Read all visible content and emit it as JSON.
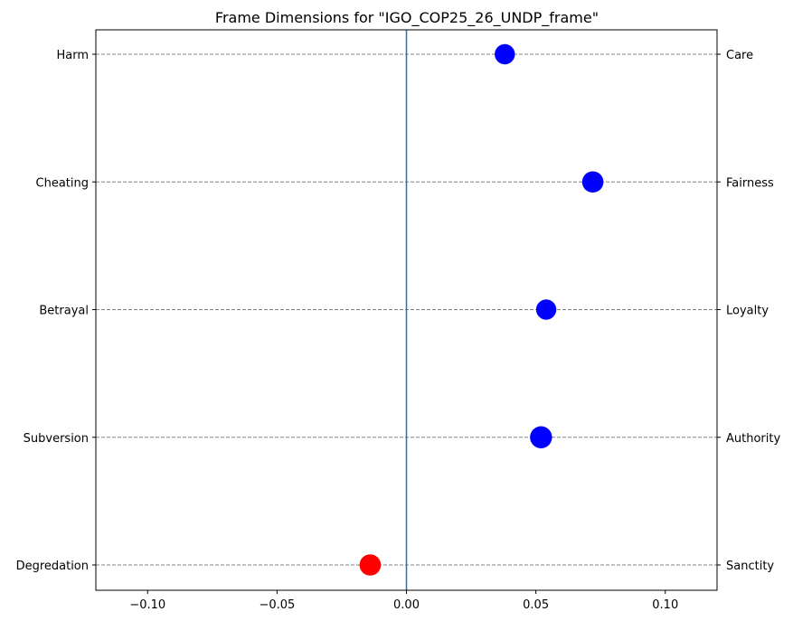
{
  "chart_data": {
    "type": "scatter",
    "title": "Frame Dimensions for \"IGO_COP25_26_UNDP_frame\"",
    "xlabel": "",
    "ylabel": "",
    "xlim": [
      -0.12,
      0.12
    ],
    "x_ticks": [
      -0.1,
      -0.05,
      0.0,
      0.05,
      0.1
    ],
    "x_tick_labels": [
      "−0.10",
      "−0.05",
      "0.00",
      "0.05",
      "0.10"
    ],
    "left_labels": [
      "Harm",
      "Cheating",
      "Betrayal",
      "Subversion",
      "Degredation"
    ],
    "right_labels": [
      "Care",
      "Fairness",
      "Loyalty",
      "Authority",
      "Sanctity"
    ],
    "values": [
      0.038,
      0.072,
      0.054,
      0.052,
      -0.014
    ],
    "marker_weights": [
      0.55,
      0.7,
      0.55,
      0.8,
      0.7
    ],
    "positive_color": "#0000ff",
    "negative_color": "#ff0000",
    "zero_line_color": "#1f77b4",
    "grid_color": "#808080"
  }
}
